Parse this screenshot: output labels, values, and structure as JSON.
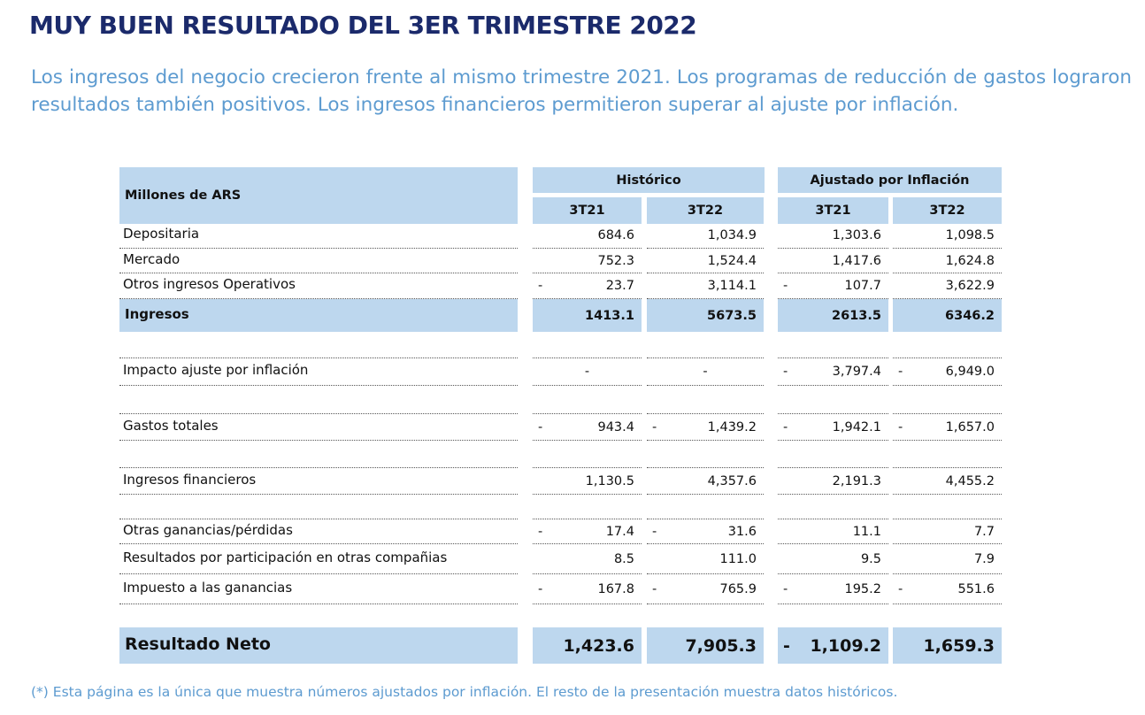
{
  "header": {
    "title": "MUY BUEN RESULTADO DEL 3ER TRIMESTRE 2022",
    "subtitle": "Los ingresos del negocio crecieron frente al mismo trimestre 2021. Los programas de reducción de gastos lograron resultados también positivos. Los ingresos financieros permitieron superar al ajuste por inflación."
  },
  "table": {
    "corner": "Millones de ARS",
    "groups": [
      "Histórico",
      "Ajustado por Inflación"
    ],
    "columns": [
      "3T21",
      "3T22",
      "3T21",
      "3T22"
    ],
    "rows": [
      {
        "label": "Depositaria",
        "cells": [
          "684.6",
          "1,034.9",
          "1,303.6",
          "1,098.5"
        ]
      },
      {
        "label": "Mercado",
        "cells": [
          "752.3",
          "1,524.4",
          "1,417.6",
          "1,624.8"
        ]
      },
      {
        "label": "Otros ingresos Operativos",
        "cells": [
          {
            "sign": "-",
            "text": "23.7"
          },
          "3,114.1",
          {
            "sign": "-",
            "text": "107.7"
          },
          "3,622.9"
        ]
      },
      {
        "label": "Ingresos",
        "cells": [
          "1413.1",
          "5673.5",
          "2613.5",
          "6346.2"
        ]
      },
      {
        "label": "Impacto ajuste por inflación",
        "cells": [
          "-",
          "-",
          {
            "sign": "-",
            "text": "3,797.4"
          },
          {
            "sign": "-",
            "text": "6,949.0"
          }
        ]
      },
      {
        "label": "Gastos totales",
        "cells": [
          {
            "sign": "-",
            "text": "943.4"
          },
          {
            "sign": "-",
            "text": "1,439.2"
          },
          {
            "sign": "-",
            "text": "1,942.1"
          },
          {
            "sign": "-",
            "text": "1,657.0"
          }
        ]
      },
      {
        "label": "Ingresos financieros",
        "cells": [
          "1,130.5",
          "4,357.6",
          "2,191.3",
          "4,455.2"
        ]
      },
      {
        "label": "Otras ganancias/pérdidas",
        "cells": [
          {
            "sign": "-",
            "text": "17.4"
          },
          {
            "sign": "-",
            "text": "31.6"
          },
          "11.1",
          "7.7"
        ]
      },
      {
        "label": "Resultados por participación en otras compañias",
        "cells": [
          "8.5",
          "111.0",
          "9.5",
          "7.9"
        ]
      },
      {
        "label": "Impuesto a las ganancias",
        "cells": [
          {
            "sign": "-",
            "text": "167.8"
          },
          {
            "sign": "-",
            "text": "765.9"
          },
          {
            "sign": "-",
            "text": "195.2"
          },
          {
            "sign": "-",
            "text": "551.6"
          }
        ]
      },
      {
        "label": "Resultado Neto",
        "cells": [
          "1,423.6",
          "7,905.3",
          {
            "sign": "-",
            "text": "1,109.2"
          },
          "1,659.3"
        ]
      }
    ]
  },
  "footnote": "(*) Esta página es la única que muestra números ajustados por inflación. El resto de la presentación muestra datos históricos."
}
